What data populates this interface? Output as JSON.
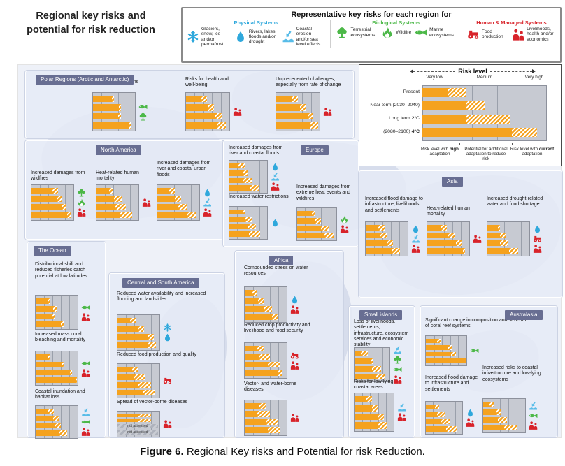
{
  "title": "Regional key risks and\npotential for risk reduction",
  "caption": {
    "label": "Figure 6.",
    "text": " Regional Key risks and Potential for risk Reduction."
  },
  "not_assessed": "not assessed",
  "legend": {
    "title": "Representative key risks for each region for",
    "groups": [
      {
        "name": "Physical Systems",
        "color": "#2FA8DC",
        "items": [
          {
            "icon": "snowflake",
            "label": "Glaciers, snow, ice and/or permafrost"
          },
          {
            "icon": "droplet",
            "label": "Rivers, lakes, floods and/or drought"
          },
          {
            "icon": "coastal",
            "label": "Coastal erosion and/or sea level effects"
          }
        ]
      },
      {
        "name": "Biological Systems",
        "color": "#4CB848",
        "items": [
          {
            "icon": "tree",
            "label": "Terrestrial ecosystems"
          },
          {
            "icon": "wildfire",
            "label": "Wildfire"
          },
          {
            "icon": "fish",
            "label": "Marine ecosystems"
          }
        ]
      },
      {
        "name": "Human & Managed Systems",
        "color": "#D8232A",
        "items": [
          {
            "icon": "tractor",
            "label": "Food production"
          },
          {
            "icon": "people",
            "label": "Livelihoods, health and/or economics"
          }
        ]
      }
    ]
  },
  "risk_scale": {
    "title": "Risk level",
    "levels": [
      "Very low",
      "Medium",
      "Very high"
    ],
    "rows": [
      [
        "Present",
        ""
      ],
      [
        "Near term (2030–2040)",
        ""
      ],
      [
        "Long term ",
        "2°C"
      ],
      [
        "(2080–2100) ",
        "4°C"
      ]
    ],
    "bars": [
      [
        0.2,
        0.15
      ],
      [
        0.35,
        0.15
      ],
      [
        0.35,
        0.35
      ],
      [
        0.72,
        0.2
      ]
    ],
    "annotations": [
      {
        "parts": [
          [
            "Risk level with ",
            false
          ],
          [
            "high",
            true
          ],
          [
            " adaptation",
            false
          ]
        ]
      },
      {
        "parts": [
          [
            "Potential for additional adaptation to reduce risk",
            false
          ]
        ]
      },
      {
        "parts": [
          [
            "Risk level with ",
            false
          ],
          [
            "current",
            true
          ],
          [
            " adaptation",
            false
          ]
        ]
      }
    ]
  },
  "chart_data": {
    "type": "bar",
    "title": "Regional key risks and potential for risk reduction",
    "scale_levels": [
      "Very low",
      "Medium",
      "Very high"
    ],
    "timeframes": [
      "Present",
      "Near term (2030–2040)",
      "Long term 2°C (2080–2100)",
      "Long term 4°C (2080–2100)"
    ],
    "bar_value_units": "fraction of risk scale from Very low (0) to Very high (1)",
    "bar_semantics": {
      "solid": "risk level with high adaptation",
      "hatch": "potential for additional adaptation to reduce risk",
      "solid_plus_hatch": "risk level with current adaptation"
    },
    "regions": [
      {
        "id": "polar",
        "name": "Polar Regions (Arctic and Antarctic)",
        "risks": [
          {
            "label": "Risks for ecosystems",
            "icons": [
              "fish",
              "tree"
            ],
            "bars": [
              [
                0.45,
                0.05
              ],
              [
                0.62,
                0.05
              ],
              [
                0.6,
                0.06
              ],
              [
                0.85,
                0.06
              ]
            ]
          },
          {
            "label": "Risks for health and well-being",
            "icons": [
              "people"
            ],
            "bars": [
              [
                0.35,
                0.13
              ],
              [
                0.5,
                0.14
              ],
              [
                0.68,
                0.14
              ],
              [
                0.72,
                0.2
              ]
            ]
          },
          {
            "label": "Unprecedented challenges, especially from rate of change",
            "icons": [
              "people"
            ],
            "bars": [
              [
                0.35,
                0.15
              ],
              [
                0.55,
                0.12
              ],
              [
                0.72,
                0.12
              ],
              [
                0.78,
                0.18
              ]
            ]
          }
        ]
      },
      {
        "id": "north-america",
        "name": "North America",
        "risks": [
          {
            "label": "Increased damages from wildfires",
            "icons": [
              "tree",
              "wildfire",
              "people"
            ],
            "bars": [
              [
                0.5,
                0.14
              ],
              [
                0.62,
                0.1
              ],
              [
                0.72,
                0.12
              ],
              [
                0.85,
                0.1
              ]
            ]
          },
          {
            "label": "Heat-related human mortality",
            "icons": [
              "people"
            ],
            "bars": [
              [
                0.3,
                0.1
              ],
              [
                0.42,
                0.2
              ],
              [
                0.45,
                0.25
              ],
              [
                0.55,
                0.3
              ]
            ]
          },
          {
            "label": "Increased damages from river and coastal urban floods",
            "icons": [
              "droplet",
              "coastal",
              "people"
            ],
            "bars": [
              [
                0.28,
                0.14
              ],
              [
                0.42,
                0.14
              ],
              [
                0.5,
                0.2
              ],
              [
                0.72,
                0.2
              ]
            ]
          }
        ]
      },
      {
        "id": "europe",
        "name": "Europe",
        "risks": [
          {
            "label": "Increased damages from river and coastal floods",
            "icons": [
              "droplet",
              "coastal",
              "people"
            ],
            "bars": [
              [
                0.22,
                0.18
              ],
              [
                0.35,
                0.15
              ],
              [
                0.35,
                0.25
              ],
              [
                0.55,
                0.25
              ]
            ]
          },
          {
            "label": "Increased water restrictions",
            "icons": [
              "droplet"
            ],
            "bars": [
              [
                0.35,
                0.08
              ],
              [
                0.4,
                0.2
              ],
              [
                0.5,
                0.2
              ],
              [
                0.52,
                0.3
              ]
            ]
          },
          {
            "label": "Increased damages from extreme heat events and wildfires",
            "icons": [
              "wildfire",
              "people"
            ],
            "bars": [
              [
                0.38,
                0.08
              ],
              [
                0.45,
                0.15
              ],
              [
                0.6,
                0.2
              ],
              [
                0.68,
                0.25
              ]
            ]
          }
        ]
      },
      {
        "id": "asia",
        "name": "Asia",
        "risks": [
          {
            "label": "Increased flood damage to infrastructure, livelihoods and settlements",
            "icons": [
              "droplet",
              "coastal",
              "people"
            ],
            "bars": [
              [
                0.3,
                0.15
              ],
              [
                0.35,
                0.15
              ],
              [
                0.5,
                0.15
              ],
              [
                0.62,
                0.2
              ]
            ]
          },
          {
            "label": "Heat-related human mortality",
            "icons": [
              "people"
            ],
            "bars": [
              [
                0.32,
                0.14
              ],
              [
                0.5,
                0.15
              ],
              [
                0.68,
                0.15
              ],
              [
                0.85,
                0.05
              ]
            ]
          },
          {
            "label": "Increased drought-related water and food shortage",
            "icons": [
              "droplet",
              "tractor",
              "people"
            ],
            "bars": [
              [
                0.25,
                0.05
              ],
              [
                0.3,
                0.15
              ],
              [
                0.3,
                0.2
              ],
              [
                0.52,
                0.22
              ]
            ]
          }
        ]
      },
      {
        "id": "ocean",
        "name": "The Ocean",
        "risks": [
          {
            "label": "Distributional shift and reduced fisheries catch potential at low latitudes",
            "icons": [
              "fish",
              "people"
            ],
            "bars": [
              [
                0.28,
                0.05
              ],
              [
                0.42,
                0.08
              ],
              [
                0.38,
                0.08
              ],
              [
                0.6,
                0.08
              ]
            ]
          },
          {
            "label": "Increased mass coral bleaching and mortality",
            "icons": [
              "fish",
              "people"
            ],
            "bars": [
              [
                0.3,
                0.05
              ],
              [
                0.62,
                0.04
              ],
              [
                0.82,
                0.04
              ],
              [
                0.95,
                0.03
              ]
            ]
          },
          {
            "label": "Coastal inundation and habitat loss",
            "icons": [
              "coastal",
              "fish",
              "people"
            ],
            "bars": [
              [
                0.28,
                0.15
              ],
              [
                0.42,
                0.15
              ],
              [
                0.45,
                0.15
              ],
              [
                0.55,
                0.2
              ]
            ]
          }
        ]
      },
      {
        "id": "central-south-america",
        "name": "Central and South America",
        "risks": [
          {
            "label": "Reduced water availability and increased flooding and landslides",
            "icons": [
              "snowflake",
              "droplet"
            ],
            "bars": [
              [
                0.3,
                0.14
              ],
              [
                0.5,
                0.14
              ],
              [
                0.72,
                0.14
              ],
              [
                0.72,
                0.2
              ]
            ]
          },
          {
            "label": "Reduced food production and quality",
            "icons": [
              "tractor"
            ],
            "bars": [
              [
                0.35,
                0.14
              ],
              [
                0.4,
                0.25
              ],
              [
                0.5,
                0.3
              ],
              [
                0.6,
                0.3
              ]
            ]
          },
          {
            "label": "Spread of vector-borne diseases",
            "icons": [
              "people"
            ],
            "bars": [
              [
                0.5,
                0.3
              ],
              [
                0.5,
                0.3
              ],
              "na",
              "na"
            ]
          }
        ]
      },
      {
        "id": "africa",
        "name": "Africa",
        "risks": [
          {
            "label": "Compounded stress on water resources",
            "icons": [
              "droplet",
              "people"
            ],
            "bars": [
              [
                0.18,
                0.1
              ],
              [
                0.32,
                0.15
              ],
              [
                0.45,
                0.2
              ],
              [
                0.65,
                0.15
              ]
            ]
          },
          {
            "label": "Reduced crop productivity and livelihood and food security",
            "icons": [
              "tractor",
              "people"
            ],
            "bars": [
              [
                0.3,
                0.15
              ],
              [
                0.35,
                0.25
              ],
              [
                0.55,
                0.3
              ],
              [
                0.78,
                0.12
              ]
            ]
          },
          {
            "label": "Vector- and water-borne diseases",
            "icons": [
              "people"
            ],
            "bars": [
              [
                0.35,
                0.15
              ],
              [
                0.3,
                0.3
              ],
              [
                0.5,
                0.3
              ],
              [
                0.55,
                0.3
              ]
            ]
          }
        ]
      },
      {
        "id": "small-islands",
        "name": "Small islands",
        "risks": [
          {
            "label": "Loss of livelihoods, settlements, infrastructure, ecosystem services and economic stability",
            "icons": [
              "coastal",
              "tree",
              "fish",
              "people"
            ],
            "bars": [
              [
                0.18,
                0.2
              ],
              [
                0.45,
                0.06
              ],
              [
                0.5,
                0.25
              ],
              [
                0.62,
                0.25
              ]
            ]
          },
          {
            "label": "Risks for low-lying coastal areas",
            "icons": [
              "coastal",
              "people"
            ],
            "bars": [
              [
                0.3,
                0.15
              ],
              [
                0.45,
                0.15
              ],
              [
                0.6,
                0.15
              ],
              [
                0.6,
                0.22
              ]
            ]
          }
        ]
      },
      {
        "id": "australasia",
        "name": "Australasia",
        "risks": [
          {
            "label": "Significant change in composition and structure of coral reef systems",
            "icons": [
              "fish"
            ],
            "bars": [
              [
                0.28,
                0.1
              ],
              [
                0.55,
                0.1
              ],
              [
                0.62,
                0.12
              ],
              [
                1,
                0
              ]
            ]
          },
          {
            "label": "Increased flood damage to infrastructure and settlements",
            "icons": [
              "droplet",
              "people"
            ],
            "bars": [
              [
                0.25,
                0.12
              ],
              [
                0.3,
                0.22
              ],
              [
                0.4,
                0.25
              ],
              [
                0.55,
                0.3
              ]
            ]
          },
          {
            "label": "Increased risks to coastal infrastructure and low-lying ecosystems",
            "icons": [
              "coastal",
              "fish",
              "people"
            ],
            "bars": [
              [
                0.15,
                0.1
              ],
              [
                0.3,
                0.12
              ],
              [
                0.35,
                0.22
              ],
              [
                0.5,
                0.3
              ]
            ]
          }
        ]
      }
    ]
  },
  "colors": {
    "bar_orange": "#F5A21E",
    "physical_blue": "#2FA8DC",
    "coastal_blue": "#58BCE8",
    "biological_green": "#4CB848",
    "human_red": "#D8232A",
    "chip_bg": "#686E92",
    "chart_bg": "#C7CAD2",
    "panel_bg": "#E7EBF5",
    "map_bg": "#EEF1F8",
    "landmass": "#D7DDEC"
  }
}
